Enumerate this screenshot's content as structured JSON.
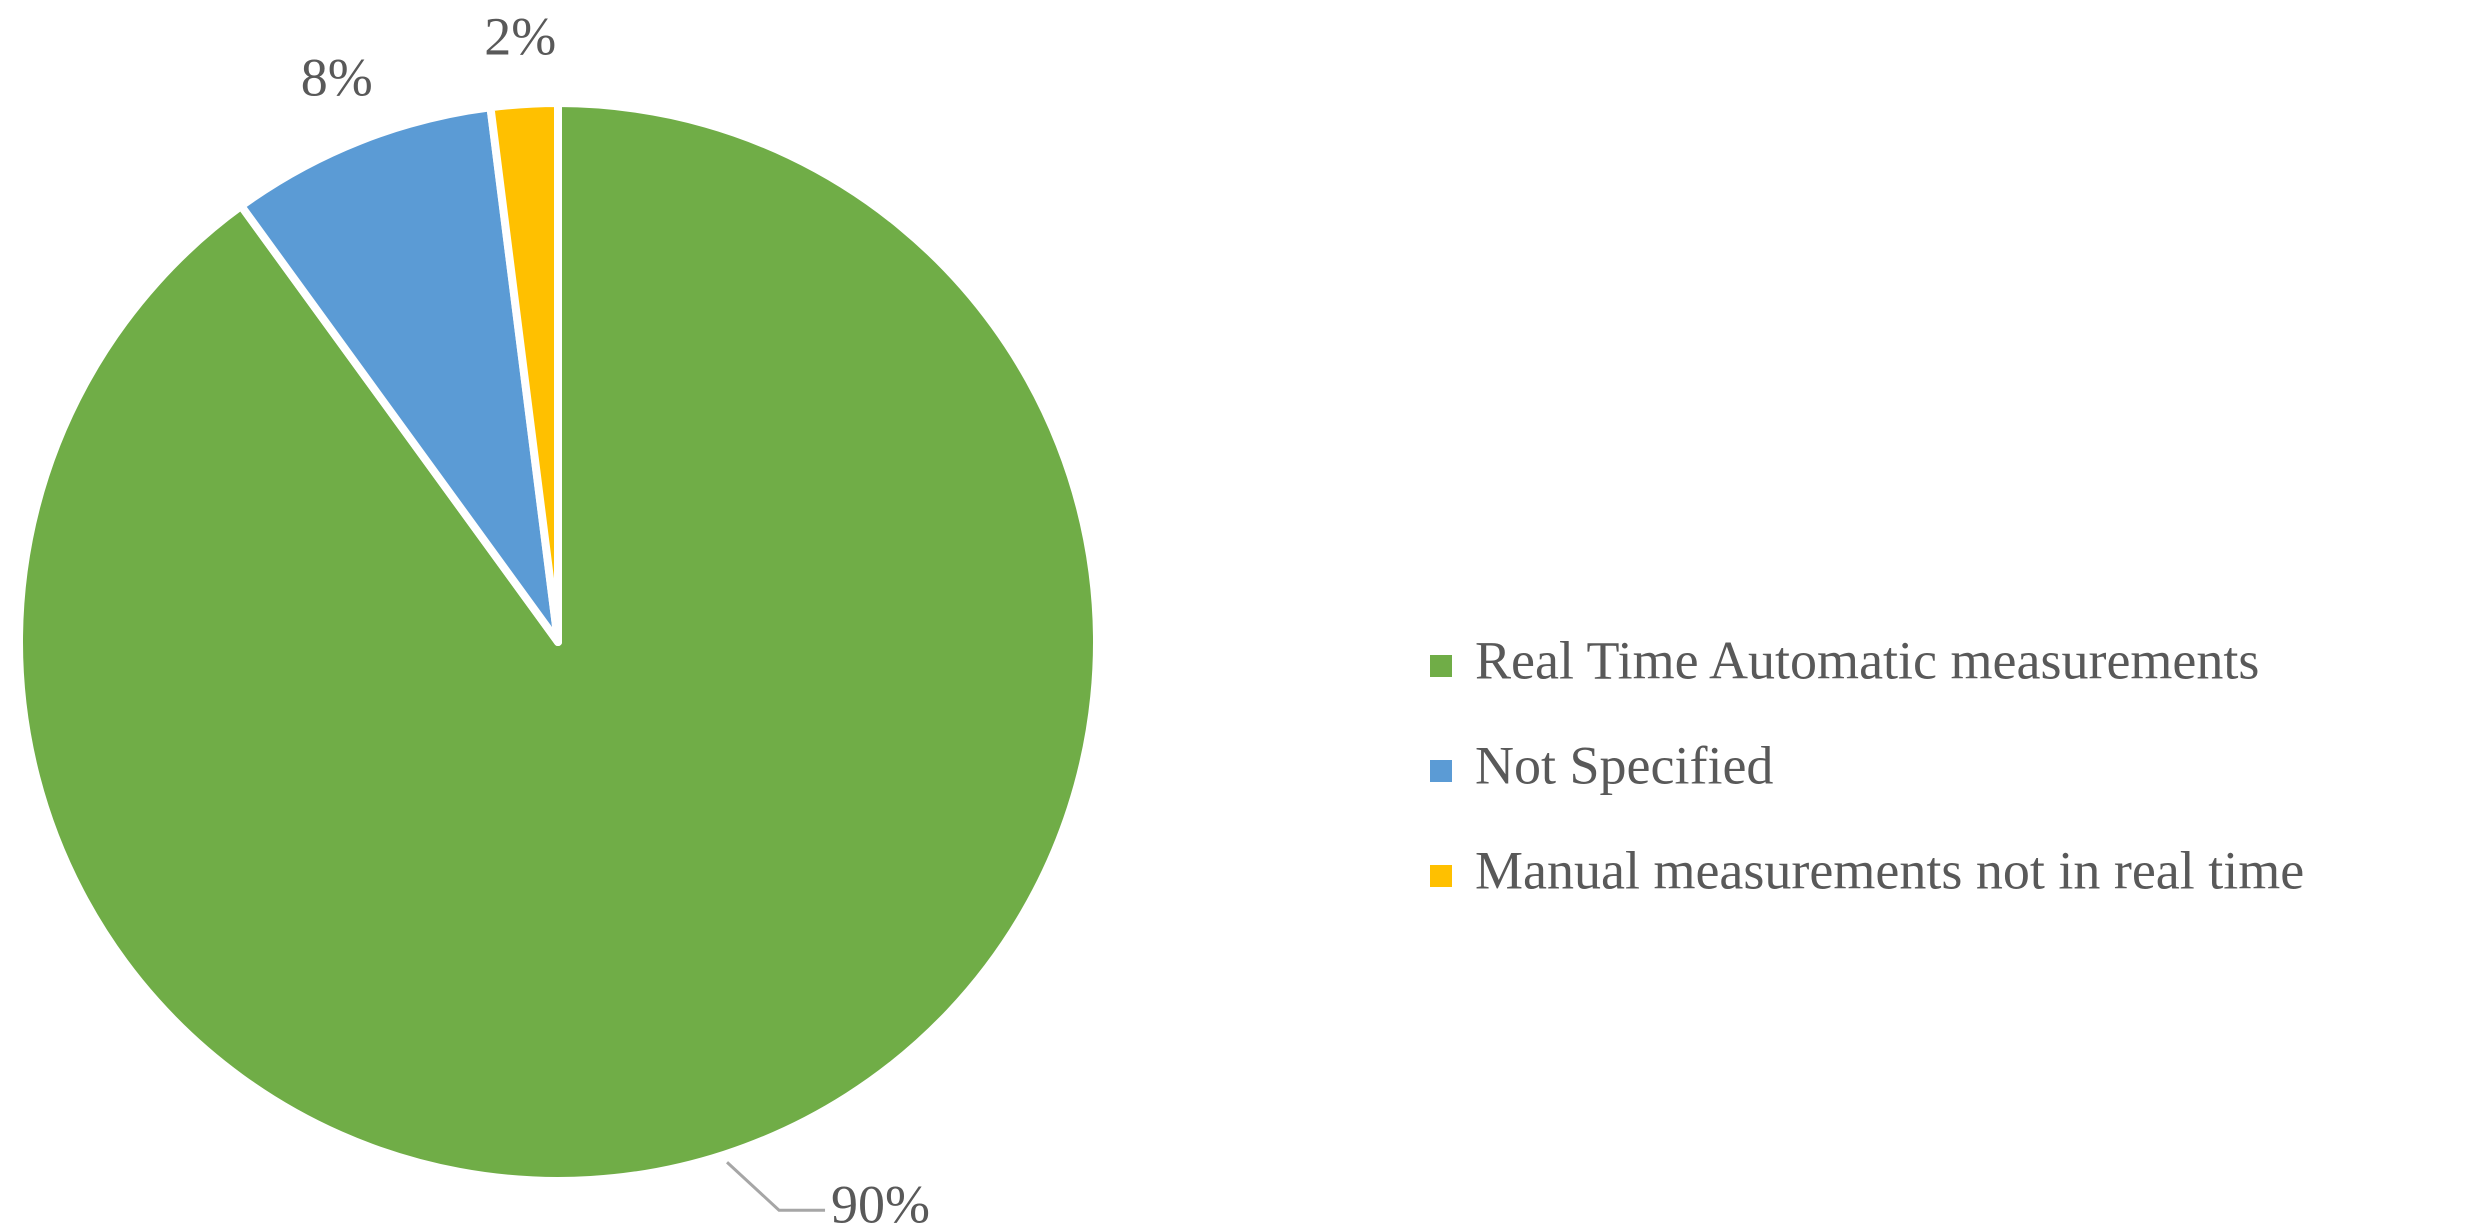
{
  "chart_data": {
    "type": "pie",
    "categories": [
      "Real Time Automatic measurements",
      "Not Specified",
      "Manual measurements not in real time"
    ],
    "values": [
      90,
      8,
      2
    ],
    "value_labels": [
      "90%",
      "8%",
      "2%"
    ],
    "colors": [
      "#70ad47",
      "#5b9bd5",
      "#ffc000"
    ],
    "legend": "right"
  }
}
